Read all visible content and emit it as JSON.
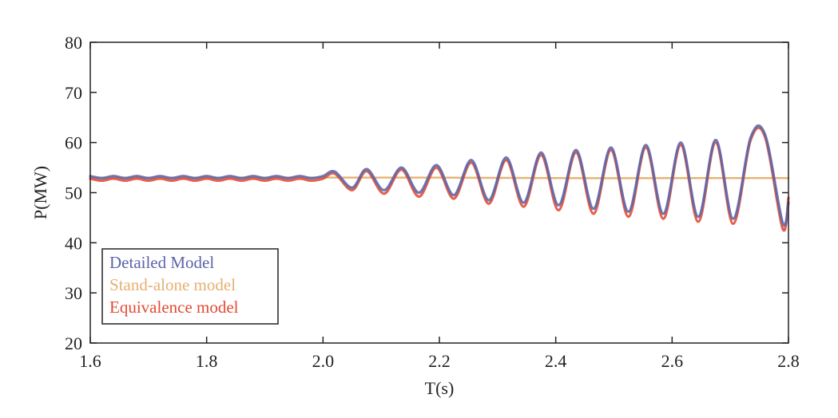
{
  "chart_data": {
    "type": "line",
    "title": "",
    "xlabel": "T(s)",
    "ylabel": "P(MW)",
    "xlim": [
      1.6,
      2.8
    ],
    "ylim": [
      20,
      80
    ],
    "xticks": [
      1.6,
      1.8,
      2.0,
      2.2,
      2.4,
      2.6,
      2.8
    ],
    "xtick_labels": [
      "1.6",
      "1.8",
      "2.0",
      "2.2",
      "2.4",
      "2.6",
      "2.8"
    ],
    "yticks": [
      20,
      30,
      40,
      50,
      60,
      70,
      80
    ],
    "ytick_labels": [
      "20",
      "30",
      "40",
      "50",
      "60",
      "70",
      "80"
    ],
    "grid": false,
    "legend_position": "bottom-left",
    "series": [
      {
        "name": "Detailed Model",
        "color": "#5a64a8",
        "x": [
          1.6,
          1.62,
          1.64,
          1.66,
          1.68,
          1.7,
          1.72,
          1.74,
          1.76,
          1.78,
          1.8,
          1.82,
          1.84,
          1.86,
          1.88,
          1.9,
          1.92,
          1.94,
          1.96,
          1.98,
          2.0,
          2.02,
          2.05,
          2.075,
          2.105,
          2.135,
          2.165,
          2.195,
          2.225,
          2.255,
          2.285,
          2.315,
          2.345,
          2.375,
          2.405,
          2.435,
          2.465,
          2.495,
          2.525,
          2.555,
          2.585,
          2.615,
          2.645,
          2.675,
          2.705,
          2.735,
          2.76,
          2.79,
          2.8
        ],
        "values": [
          53.3,
          52.9,
          53.3,
          52.9,
          53.3,
          52.9,
          53.3,
          52.9,
          53.3,
          52.9,
          53.3,
          52.9,
          53.3,
          52.9,
          53.3,
          52.9,
          53.3,
          52.9,
          53.3,
          52.9,
          53.3,
          54.2,
          51.0,
          54.7,
          50.5,
          55.0,
          50.0,
          55.5,
          49.5,
          56.5,
          48.5,
          57.0,
          48.0,
          58.0,
          47.5,
          58.5,
          46.8,
          59.0,
          46.2,
          59.5,
          45.8,
          60.0,
          45.2,
          60.5,
          44.8,
          61.0,
          61.5,
          44.0,
          48.0
        ]
      },
      {
        "name": "Stand-alone model",
        "color": "#e6b070",
        "x": [
          1.6,
          1.8,
          2.0,
          2.2,
          2.4,
          2.6,
          2.8
        ],
        "values": [
          53.0,
          53.0,
          53.0,
          53.0,
          52.9,
          52.9,
          52.9
        ]
      },
      {
        "name": "Equivalence model",
        "color": "#e24a33",
        "x": [
          1.6,
          1.62,
          1.64,
          1.66,
          1.68,
          1.7,
          1.72,
          1.74,
          1.76,
          1.78,
          1.8,
          1.82,
          1.84,
          1.86,
          1.88,
          1.9,
          1.92,
          1.94,
          1.96,
          1.98,
          2.0,
          2.02,
          2.05,
          2.075,
          2.105,
          2.135,
          2.165,
          2.195,
          2.225,
          2.255,
          2.285,
          2.315,
          2.345,
          2.375,
          2.405,
          2.435,
          2.465,
          2.495,
          2.525,
          2.555,
          2.585,
          2.615,
          2.645,
          2.675,
          2.705,
          2.735,
          2.76,
          2.79,
          2.8
        ],
        "values": [
          52.8,
          52.4,
          52.8,
          52.4,
          52.8,
          52.4,
          52.8,
          52.4,
          52.8,
          52.4,
          52.8,
          52.4,
          52.8,
          52.4,
          52.8,
          52.4,
          52.8,
          52.4,
          52.8,
          52.4,
          52.8,
          53.8,
          50.5,
          54.3,
          49.8,
          54.6,
          49.2,
          55.0,
          48.8,
          56.0,
          47.8,
          56.5,
          47.2,
          57.5,
          46.5,
          58.0,
          45.8,
          58.5,
          45.2,
          59.0,
          44.8,
          59.5,
          44.2,
          60.0,
          43.8,
          60.5,
          61.0,
          42.8,
          49.0
        ]
      }
    ]
  }
}
